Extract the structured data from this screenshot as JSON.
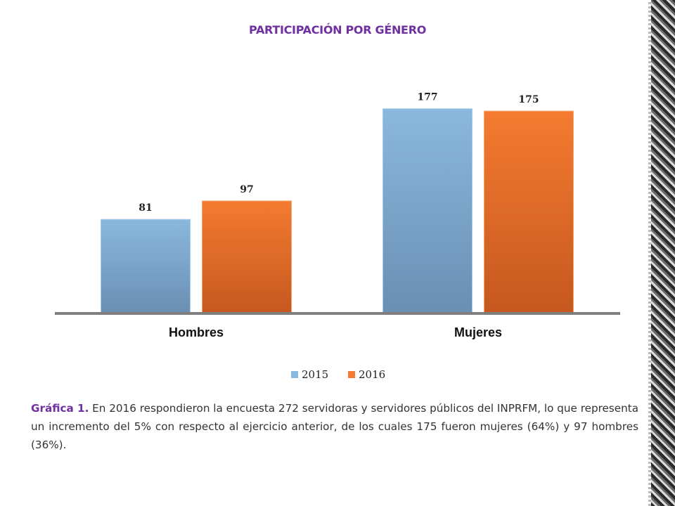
{
  "page": {
    "caption_lead": "Gráfica 1.",
    "caption_text": " En 2016 respondieron la encuesta 272 servidoras y servidores públicos del INPRFM, lo que representa un incremento del 5% con respecto al ejercicio anterior, de los cuales 175 fueron mujeres (64%) y 97 hombres (36%)."
  },
  "colors": {
    "title": "#7030a0",
    "series_2015_top": "#8bb8de",
    "series_2015_bottom": "#6a8fb3",
    "series_2016_top": "#f47b31",
    "series_2016_bottom": "#c5581f",
    "axis": "#7f7f7f"
  },
  "chart_data": {
    "type": "bar",
    "title": "PARTICIPACIÓN POR GÉNERO",
    "categories": [
      "Hombres",
      "Mujeres"
    ],
    "series": [
      {
        "name": "2015",
        "values": [
          81,
          177
        ]
      },
      {
        "name": "2016",
        "values": [
          97,
          175
        ]
      }
    ],
    "xlabel": "",
    "ylabel": "",
    "ylim": [
      0,
      200
    ],
    "grid": false,
    "legend": "bottom",
    "data_labels": true
  }
}
